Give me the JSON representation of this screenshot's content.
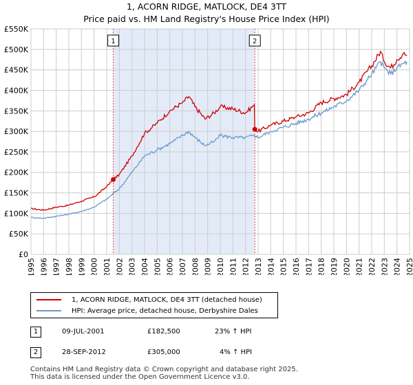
{
  "title_line1": "1, ACORN RIDGE, MATLOCK, DE4 3TT",
  "title_line2": "Price paid vs. HM Land Registry's House Price Index (HPI)",
  "colors": {
    "property": "#cc0000",
    "hpi": "#6699cc",
    "shade": "#e4ebf8",
    "grid": "#cccccc",
    "vline": "#dd4444"
  },
  "chart_data": {
    "type": "line",
    "xlim": [
      1995,
      2025
    ],
    "ylim": [
      0,
      550000
    ],
    "y_ticks": [
      0,
      50000,
      100000,
      150000,
      200000,
      250000,
      300000,
      350000,
      400000,
      450000,
      500000,
      550000
    ],
    "y_tick_labels": [
      "£0",
      "£50K",
      "£100K",
      "£150K",
      "£200K",
      "£250K",
      "£300K",
      "£350K",
      "£400K",
      "£450K",
      "£500K",
      "£550K"
    ],
    "x_ticks": [
      1995,
      1996,
      1997,
      1998,
      1999,
      2000,
      2001,
      2002,
      2003,
      2004,
      2005,
      2006,
      2007,
      2008,
      2009,
      2010,
      2011,
      2012,
      2013,
      2014,
      2015,
      2016,
      2017,
      2018,
      2019,
      2020,
      2021,
      2022,
      2023,
      2024,
      2025
    ],
    "x_tick_labels": [
      "1995",
      "1996",
      "1997",
      "1998",
      "1999",
      "2000",
      "2001",
      "2002",
      "2003",
      "2004",
      "2005",
      "2006",
      "2007",
      "2008",
      "2009",
      "2010",
      "2011",
      "2012",
      "2013",
      "2014",
      "2015",
      "2016",
      "2017",
      "2018",
      "2019",
      "2020",
      "2021",
      "2022",
      "2023",
      "2024",
      "2025"
    ],
    "shaded_range": [
      2001.52,
      2012.74
    ],
    "series": [
      {
        "name": "1, ACORN RIDGE, MATLOCK, DE4 3TT (detached house)",
        "x": [
          1995,
          1996,
          1997,
          1998,
          1999,
          2000,
          2001,
          2001.52,
          2002,
          2003,
          2004,
          2005,
          2006,
          2007,
          2007.5,
          2008,
          2008.8,
          2009.5,
          2010,
          2011,
          2012,
          2012.7,
          2012.74,
          2013,
          2014,
          2015,
          2016,
          2017,
          2018,
          2019,
          2020,
          2021,
          2022,
          2022.7,
          2023,
          2023.5,
          2024,
          2024.5,
          2024.8
        ],
        "values": [
          112000,
          108000,
          115000,
          120000,
          130000,
          140000,
          165000,
          182500,
          195000,
          240000,
          295000,
          320000,
          350000,
          370000,
          385000,
          360000,
          330000,
          345000,
          360000,
          355000,
          345000,
          365000,
          305000,
          300000,
          315000,
          325000,
          335000,
          345000,
          370000,
          380000,
          390000,
          420000,
          460000,
          495000,
          470000,
          455000,
          475000,
          490000,
          485000
        ]
      },
      {
        "name": "HPI: Average price, detached house, Derbyshire Dales",
        "x": [
          1995,
          1996,
          1997,
          1998,
          1999,
          2000,
          2001,
          2002,
          2003,
          2004,
          2005,
          2006,
          2007,
          2007.5,
          2008,
          2008.8,
          2009.5,
          2010,
          2011,
          2012,
          2012.74,
          2013,
          2014,
          2015,
          2016,
          2017,
          2018,
          2019,
          2020,
          2021,
          2022,
          2022.7,
          2023,
          2023.5,
          2024,
          2024.5,
          2024.8
        ],
        "values": [
          90000,
          88000,
          93000,
          98000,
          105000,
          115000,
          135000,
          160000,
          200000,
          240000,
          255000,
          270000,
          290000,
          300000,
          285000,
          265000,
          275000,
          290000,
          285000,
          285000,
          290000,
          285000,
          300000,
          310000,
          320000,
          330000,
          345000,
          360000,
          375000,
          400000,
          440000,
          470000,
          455000,
          440000,
          455000,
          465000,
          470000
        ]
      }
    ],
    "sales": [
      {
        "label": "1",
        "x": 2001.52,
        "value": 182500
      },
      {
        "label": "2",
        "x": 2012.74,
        "value": 305000
      }
    ]
  },
  "legend": {
    "property_label": "1, ACORN RIDGE, MATLOCK, DE4 3TT (detached house)",
    "hpi_label": "HPI: Average price, detached house, Derbyshire Dales"
  },
  "transactions": [
    {
      "num": "1",
      "date": "09-JUL-2001",
      "price": "£182,500",
      "delta": "23% ↑ HPI"
    },
    {
      "num": "2",
      "date": "28-SEP-2012",
      "price": "£305,000",
      "delta": "4% ↑ HPI"
    }
  ],
  "footer_line1": "Contains HM Land Registry data © Crown copyright and database right 2025.",
  "footer_line2": "This data is licensed under the Open Government Licence v3.0."
}
